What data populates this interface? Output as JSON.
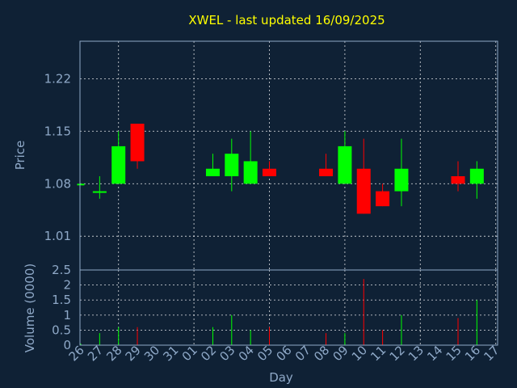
{
  "chart_data": {
    "type": "candlestick",
    "title": "XWEL - last updated 16/09/2025",
    "xlabel": "Day",
    "price_panel": {
      "ylabel": "Price",
      "ylim": [
        0.965,
        1.27
      ],
      "yticks": [
        1.01,
        1.08,
        1.15,
        1.22
      ],
      "ytick_labels": [
        "1.01",
        "1.08",
        "1.15",
        "1.22"
      ]
    },
    "volume_panel": {
      "ylabel": "Volume (0000)",
      "ylim": [
        0,
        2.5
      ],
      "yticks": [
        0,
        0.5,
        1,
        1.5,
        2,
        2.5
      ],
      "ytick_labels": [
        "0",
        "0.5",
        "1",
        "1.5",
        "2",
        "2.5"
      ]
    },
    "x_tick_labels": [
      "26",
      "27",
      "28",
      "29",
      "30",
      "31",
      "01",
      "02",
      "03",
      "04",
      "05",
      "06",
      "07",
      "08",
      "09",
      "10",
      "11",
      "12",
      "13",
      "14",
      "15",
      "16",
      "17"
    ],
    "x_grid_ticks": [
      2,
      6,
      10,
      14,
      18,
      22
    ],
    "up_color": "#00ff00",
    "down_color": "#ff0000",
    "candles": [
      {
        "x": 0,
        "open": 1.08,
        "high": 1.08,
        "low": 1.08,
        "close": 1.08,
        "volume": 0.05,
        "dir": "up"
      },
      {
        "x": 1,
        "open": 1.07,
        "high": 1.09,
        "low": 1.06,
        "close": 1.07,
        "volume": 0.4,
        "dir": "up"
      },
      {
        "x": 2,
        "open": 1.08,
        "high": 1.15,
        "low": 1.08,
        "close": 1.13,
        "volume": 0.6,
        "dir": "up"
      },
      {
        "x": 3,
        "open": 1.16,
        "high": 1.16,
        "low": 1.1,
        "close": 1.11,
        "volume": 0.6,
        "dir": "down"
      },
      {
        "x": 7,
        "open": 1.09,
        "high": 1.12,
        "low": 1.09,
        "close": 1.1,
        "volume": 0.6,
        "dir": "up"
      },
      {
        "x": 8,
        "open": 1.09,
        "high": 1.14,
        "low": 1.07,
        "close": 1.12,
        "volume": 1.0,
        "dir": "up"
      },
      {
        "x": 9,
        "open": 1.08,
        "high": 1.15,
        "low": 1.08,
        "close": 1.11,
        "volume": 0.5,
        "dir": "up"
      },
      {
        "x": 10,
        "open": 1.1,
        "high": 1.11,
        "low": 1.09,
        "close": 1.09,
        "volume": 0.6,
        "dir": "down"
      },
      {
        "x": 13,
        "open": 1.1,
        "high": 1.12,
        "low": 1.09,
        "close": 1.09,
        "volume": 0.4,
        "dir": "down"
      },
      {
        "x": 14,
        "open": 1.08,
        "high": 1.15,
        "low": 1.08,
        "close": 1.13,
        "volume": 0.4,
        "dir": "up"
      },
      {
        "x": 15,
        "open": 1.1,
        "high": 1.14,
        "low": 1.04,
        "close": 1.04,
        "volume": 2.2,
        "dir": "down"
      },
      {
        "x": 16,
        "open": 1.07,
        "high": 1.08,
        "low": 1.05,
        "close": 1.05,
        "volume": 0.5,
        "dir": "down"
      },
      {
        "x": 17,
        "open": 1.07,
        "high": 1.14,
        "low": 1.05,
        "close": 1.1,
        "volume": 1.0,
        "dir": "up"
      },
      {
        "x": 20,
        "open": 1.09,
        "high": 1.11,
        "low": 1.07,
        "close": 1.08,
        "volume": 0.9,
        "dir": "down"
      },
      {
        "x": 21,
        "open": 1.08,
        "high": 1.11,
        "low": 1.06,
        "close": 1.1,
        "volume": 1.5,
        "dir": "up"
      }
    ]
  }
}
